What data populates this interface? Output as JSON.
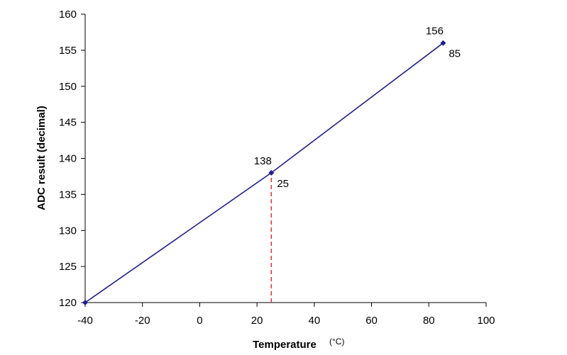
{
  "chart_data": {
    "type": "line",
    "title": "",
    "xlabel": "Temperature",
    "xunit": "(°C)",
    "ylabel": "ADC result (decimal)",
    "xlim": [
      -40,
      100
    ],
    "ylim": [
      120,
      160
    ],
    "xticks": [
      -40,
      -20,
      0,
      20,
      40,
      60,
      80,
      100
    ],
    "yticks": [
      120,
      125,
      130,
      135,
      140,
      145,
      150,
      155,
      160
    ],
    "grid": false,
    "legend": "none",
    "series": [
      {
        "color": "#1f1f8f",
        "x": [
          -40,
          25,
          85
        ],
        "y": [
          120,
          138,
          156
        ]
      }
    ],
    "annotations": [
      {
        "x": 25,
        "y": 138,
        "value_label": "138",
        "x_label": "25"
      },
      {
        "x": 85,
        "y": 156,
        "value_label": "156",
        "x_label": "85"
      }
    ],
    "reference_line": {
      "x": 25,
      "from_y": 120,
      "to_y": 138,
      "color": "#e03030",
      "style": "dashed"
    }
  }
}
